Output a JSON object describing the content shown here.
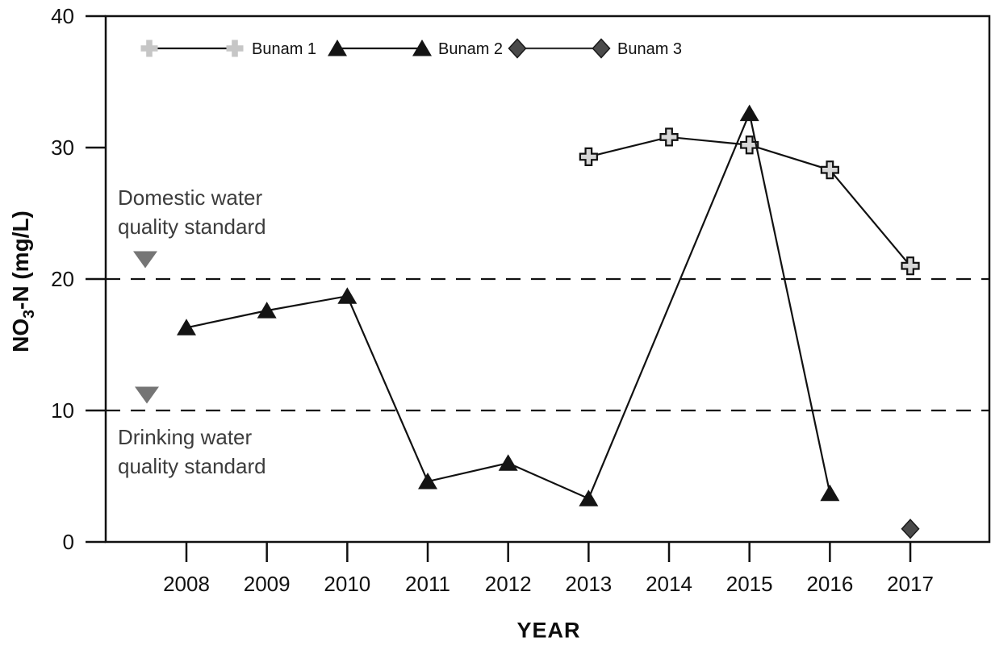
{
  "chart_data": {
    "type": "line",
    "xlabel": "YEAR",
    "ylabel": "NO3-N (mg/L)",
    "ylabel_parts": {
      "prefix": "NO",
      "sub": "3",
      "suffix": "-N (mg/L)"
    },
    "x": [
      2008,
      2009,
      2010,
      2011,
      2012,
      2013,
      2014,
      2015,
      2016,
      2017
    ],
    "yticks": [
      0,
      10,
      20,
      30,
      40
    ],
    "ylim": [
      0,
      40
    ],
    "grid": false,
    "legend_position": "top-inside",
    "series": [
      {
        "name": "Bunam 1",
        "marker": "plus",
        "x": [
          2013,
          2014,
          2015,
          2016,
          2017
        ],
        "y": [
          29.3,
          30.8,
          30.2,
          28.3,
          21.0
        ]
      },
      {
        "name": "Bunam 2",
        "marker": "triangle",
        "x": [
          2008,
          2009,
          2010,
          2011,
          2012,
          2013,
          2015,
          2016
        ],
        "y": [
          16.3,
          17.6,
          18.7,
          4.6,
          6.0,
          3.3,
          32.6,
          3.7
        ]
      },
      {
        "name": "Bunam 3",
        "marker": "diamond",
        "x": [
          2017
        ],
        "y": [
          1.0
        ]
      }
    ],
    "reference_lines": [
      {
        "value": 20,
        "style": "dashed",
        "label": [
          "Domestic water",
          "quality standard"
        ]
      },
      {
        "value": 10,
        "style": "dashed",
        "label": [
          "Drinking water",
          "quality standard"
        ]
      }
    ]
  },
  "colors": {
    "axis": "#111111",
    "line": "#111111",
    "plus_fill": "#d6d6d6",
    "legend_plus_fill": "#c6c6c6",
    "triangle_fill": "#141414",
    "diamond_fill": "#4a4a4a",
    "diamond_stroke": "#1a1a1a",
    "annotation_marker": "#757575",
    "annotation_text": "#3c3c3c"
  }
}
